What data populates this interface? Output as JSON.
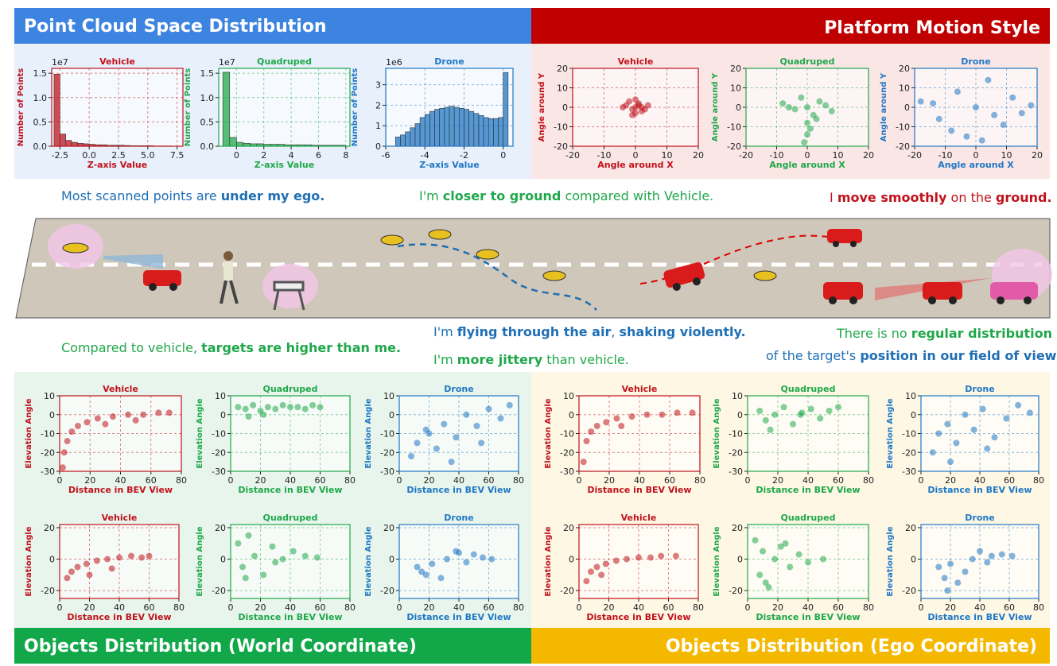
{
  "banners": {
    "top_left": "Point Cloud Space Distribution",
    "top_right": "Platform Motion Style",
    "bottom_left": "Objects Distribution (World Coordinate)",
    "bottom_right": "Objects Distribution (Ego Coordinate)"
  },
  "captions": [
    {
      "color": "#1f6fb5",
      "segments": [
        {
          "text": "Most scanned points are ",
          "bold": false
        },
        {
          "text": "under my ego.",
          "bold": true
        }
      ]
    },
    {
      "color": "#1fa84a",
      "segments": [
        {
          "text": "I'm ",
          "bold": false
        },
        {
          "text": "closer to ground",
          "bold": true
        },
        {
          "text": " compared with Vehicle.",
          "bold": false
        }
      ]
    },
    {
      "color": "#c0121b",
      "segments": [
        {
          "text": "I ",
          "bold": false
        },
        {
          "text": "move smoothly",
          "bold": true
        },
        {
          "text": " on the ",
          "bold": false
        },
        {
          "text": "ground.",
          "bold": true
        }
      ]
    },
    {
      "color": "#1fa84a",
      "segments": [
        {
          "text": "Compared to vehicle, ",
          "bold": false
        },
        {
          "text": "targets are higher than me.",
          "bold": true
        }
      ]
    },
    {
      "color": "#1f6fb5",
      "segments": [
        {
          "text": "I'm ",
          "bold": false
        },
        {
          "text": "flying through the air",
          "bold": true
        },
        {
          "text": ", ",
          "bold": false
        },
        {
          "text": "shaking violently.",
          "bold": true
        }
      ]
    },
    {
      "color": "#1fa84a",
      "segments": [
        {
          "text": "I'm ",
          "bold": false
        },
        {
          "text": "more jittery",
          "bold": true
        },
        {
          "text": " than vehicle.",
          "bold": false
        }
      ]
    },
    {
      "color": "#1fa84a",
      "segments": [
        {
          "text": "There is no ",
          "bold": false
        },
        {
          "text": "regular distribution",
          "bold": true
        }
      ]
    },
    {
      "color": "#1f6fb5",
      "segments": [
        {
          "text": "of the target's ",
          "bold": false
        },
        {
          "text": "position in our field of view.",
          "bold": true
        }
      ]
    }
  ],
  "chart_data": [
    {
      "type": "histogram",
      "title": "Vehicle",
      "xlabel": "Z-axis Value",
      "ylabel": "Number of Points",
      "scale_label": "1e7",
      "color": "#c0121b",
      "grid": true,
      "bins": [
        -3,
        -2.5,
        -2,
        -1.5,
        -1,
        -0.5,
        0,
        0.5,
        1,
        1.5,
        2,
        2.5,
        3,
        3.5,
        4,
        4.5,
        5,
        5.5,
        6,
        6.5,
        7
      ],
      "values": [
        1.48,
        0.25,
        0.12,
        0.08,
        0.06,
        0.05,
        0.04,
        0.03,
        0.03,
        0.02,
        0.02,
        0.02,
        0.015,
        0.01,
        0.01,
        0.01,
        0.01,
        0.005,
        0.005,
        0.005
      ],
      "xlim": [
        -3.2,
        8
      ],
      "ylim": [
        0,
        1.6
      ],
      "xticks": [
        -2.5,
        {
          "value": 0,
          "label": "0.0"
        },
        2.5,
        {
          "value": 5,
          "label": "5.0"
        },
        7.5
      ],
      "yticks": [
        {
          "value": 0,
          "label": "0.0"
        },
        0.5,
        {
          "value": 1,
          "label": "1.0"
        },
        1.5
      ]
    },
    {
      "type": "histogram",
      "title": "Quadruped",
      "xlabel": "Z-axis Value",
      "ylabel": "Number of Points",
      "scale_label": "1e7",
      "color": "#1fa84a",
      "grid": true,
      "bins": [
        -1,
        -0.5,
        0,
        0.5,
        1,
        1.5,
        2,
        2.5,
        3,
        3.5,
        4,
        4.5,
        5,
        5.5,
        6,
        6.5,
        7,
        7.5,
        8
      ],
      "values": [
        1.52,
        0.18,
        0.08,
        0.06,
        0.05,
        0.05,
        0.04,
        0.04,
        0.04,
        0.03,
        0.03,
        0.03,
        0.03,
        0.02,
        0.02,
        0.02,
        0.02,
        0.02
      ],
      "xlim": [
        -1.3,
        8.3
      ],
      "ylim": [
        0,
        1.6
      ],
      "xticks": [
        0,
        2,
        4,
        6,
        8
      ],
      "yticks": [
        {
          "value": 0,
          "label": "0.0"
        },
        0.5,
        {
          "value": 1,
          "label": "1.0"
        },
        1.5
      ]
    },
    {
      "type": "histogram",
      "title": "Drone",
      "xlabel": "Z-axis Value",
      "ylabel": "Number of Points",
      "scale_label": "1e6",
      "color": "#1f77c4",
      "grid": true,
      "bins": [
        -5.5,
        -5.25,
        -5,
        -4.75,
        -4.5,
        -4.25,
        -4,
        -3.75,
        -3.5,
        -3.25,
        -3,
        -2.75,
        -2.5,
        -2.25,
        -2,
        -1.75,
        -1.5,
        -1.25,
        -1,
        -0.75,
        -0.5,
        -0.25,
        0,
        0.25
      ],
      "values": [
        0.45,
        0.55,
        0.7,
        0.9,
        1.1,
        1.4,
        1.55,
        1.7,
        1.8,
        1.85,
        1.9,
        1.95,
        1.9,
        1.85,
        1.8,
        1.7,
        1.6,
        1.5,
        1.4,
        1.35,
        1.35,
        1.4,
        3.6
      ],
      "xlim": [
        -6,
        0.5
      ],
      "ylim": [
        0,
        3.8
      ],
      "xticks": [
        -6,
        -4,
        -2,
        0
      ],
      "yticks": [
        0,
        1,
        2,
        3
      ]
    },
    {
      "type": "scatter",
      "title": "Vehicle",
      "xlabel": "Angle around X",
      "ylabel": "Angle around Y",
      "color": "#c0121b",
      "grid": true,
      "x": [
        -3,
        -1,
        0,
        1,
        2,
        -2,
        0,
        1,
        -4,
        3,
        0,
        -1,
        2,
        4
      ],
      "y": [
        1,
        -1,
        0,
        2,
        -2,
        3,
        -3,
        1,
        0,
        -1,
        4,
        -4,
        0,
        1
      ],
      "xlim": [
        -20,
        20
      ],
      "ylim": [
        -20,
        20
      ],
      "xticks": [
        -20,
        -10,
        0,
        10,
        20
      ],
      "yticks": [
        -20,
        -10,
        0,
        10,
        20
      ]
    },
    {
      "type": "scatter",
      "title": "Quadruped",
      "xlabel": "Angle around X",
      "ylabel": "Angle around Y",
      "color": "#1fa84a",
      "grid": true,
      "x": [
        -8,
        -4,
        0,
        4,
        8,
        -2,
        2,
        0,
        0,
        -1,
        1,
        6,
        -6,
        3
      ],
      "y": [
        2,
        -1,
        0,
        3,
        -2,
        5,
        -4,
        -8,
        -14,
        -18,
        -11,
        1,
        0,
        -6
      ],
      "xlim": [
        -20,
        20
      ],
      "ylim": [
        -20,
        20
      ],
      "xticks": [
        -20,
        -10,
        0,
        10,
        20
      ],
      "yticks": [
        -20,
        -10,
        0,
        10,
        20
      ]
    },
    {
      "type": "scatter",
      "title": "Drone",
      "xlabel": "Angle around X",
      "ylabel": "Angle around Y",
      "color": "#1f77c4",
      "grid": true,
      "x": [
        -18,
        -12,
        -6,
        0,
        6,
        12,
        18,
        -8,
        4,
        -3,
        9,
        -14,
        2,
        15
      ],
      "y": [
        3,
        -6,
        8,
        0,
        -4,
        5,
        1,
        -12,
        14,
        -15,
        -9,
        2,
        -17,
        -3
      ],
      "xlim": [
        -20,
        20
      ],
      "ylim": [
        -20,
        20
      ],
      "xticks": [
        -20,
        -10,
        0,
        10,
        20
      ],
      "yticks": [
        -20,
        -10,
        0,
        10,
        20
      ]
    },
    {
      "type": "scatter",
      "title": "Vehicle",
      "xlabel": "Distance in BEV View",
      "ylabel": "Elevation Angle",
      "color": "#c0121b",
      "grid": true,
      "x": [
        2,
        3,
        5,
        8,
        12,
        18,
        25,
        35,
        45,
        55,
        65,
        72,
        30,
        50
      ],
      "y": [
        -28,
        -20,
        -14,
        -9,
        -6,
        -4,
        -2,
        -1,
        0,
        0,
        1,
        1,
        -5,
        -3
      ],
      "xlim": [
        0,
        80
      ],
      "ylim": [
        -30,
        10
      ],
      "xticks": [
        0,
        20,
        40,
        60,
        80
      ],
      "yticks": [
        -30,
        -20,
        -10,
        0,
        10
      ]
    },
    {
      "type": "scatter",
      "title": "Quadruped",
      "xlabel": "Distance in BEV View",
      "ylabel": "Elevation Angle",
      "color": "#1fa84a",
      "grid": true,
      "x": [
        5,
        10,
        15,
        20,
        25,
        30,
        35,
        40,
        45,
        50,
        55,
        60,
        12,
        22
      ],
      "y": [
        4,
        3,
        5,
        2,
        4,
        3,
        5,
        4,
        4,
        3,
        5,
        4,
        -1,
        0
      ],
      "xlim": [
        0,
        80
      ],
      "ylim": [
        -30,
        10
      ],
      "xticks": [
        0,
        20,
        40,
        60,
        80
      ],
      "yticks": [
        -30,
        -20,
        -10,
        0,
        10
      ]
    },
    {
      "type": "scatter",
      "title": "Drone",
      "xlabel": "Distance in BEV View",
      "ylabel": "Elevation Angle",
      "color": "#1f77c4",
      "grid": true,
      "x": [
        8,
        12,
        18,
        25,
        30,
        38,
        45,
        52,
        60,
        68,
        74,
        20,
        35,
        55
      ],
      "y": [
        -22,
        -15,
        -8,
        -18,
        -5,
        -12,
        0,
        -6,
        3,
        -2,
        5,
        -10,
        -25,
        -15
      ],
      "xlim": [
        0,
        80
      ],
      "ylim": [
        -30,
        10
      ],
      "xticks": [
        0,
        20,
        40,
        60,
        80
      ],
      "yticks": [
        -30,
        -20,
        -10,
        0,
        10
      ]
    },
    {
      "type": "scatter",
      "title": "Vehicle",
      "xlabel": "Distance in BEV View",
      "ylabel": "Elevation Angle",
      "color": "#c0121b",
      "grid": true,
      "x": [
        5,
        8,
        12,
        18,
        25,
        32,
        40,
        48,
        55,
        60,
        20,
        35
      ],
      "y": [
        -12,
        -8,
        -5,
        -3,
        -1,
        0,
        1,
        2,
        1,
        2,
        -10,
        -6
      ],
      "xlim": [
        0,
        80
      ],
      "ylim": [
        -25,
        22
      ],
      "xticks": [
        0,
        20,
        40,
        60,
        80
      ],
      "yticks": [
        -20,
        0,
        20
      ]
    },
    {
      "type": "scatter",
      "title": "Quadruped",
      "xlabel": "Distance in BEV View",
      "ylabel": "Elevation Angle",
      "color": "#1fa84a",
      "grid": true,
      "x": [
        5,
        8,
        12,
        16,
        22,
        28,
        35,
        42,
        50,
        58,
        10,
        30
      ],
      "y": [
        10,
        -5,
        15,
        2,
        -10,
        8,
        0,
        5,
        2,
        1,
        -12,
        -2
      ],
      "xlim": [
        0,
        80
      ],
      "ylim": [
        -25,
        22
      ],
      "xticks": [
        0,
        20,
        40,
        60,
        80
      ],
      "yticks": [
        -20,
        0,
        20
      ]
    },
    {
      "type": "scatter",
      "title": "Drone",
      "xlabel": "Distance in BEV View",
      "ylabel": "Elevation Angle",
      "color": "#1f77c4",
      "grid": true,
      "x": [
        12,
        18,
        22,
        28,
        32,
        38,
        45,
        50,
        56,
        62,
        15,
        40
      ],
      "y": [
        -5,
        -10,
        -3,
        -12,
        0,
        5,
        -2,
        3,
        1,
        0,
        -8,
        4
      ],
      "xlim": [
        0,
        80
      ],
      "ylim": [
        -25,
        22
      ],
      "xticks": [
        0,
        20,
        40,
        60,
        80
      ],
      "yticks": [
        -20,
        0,
        20
      ]
    },
    {
      "type": "scatter",
      "title": "Vehicle",
      "xlabel": "Distance in BEV View",
      "ylabel": "Elevation Angle",
      "color": "#c0121b",
      "grid": true,
      "x": [
        3,
        5,
        8,
        12,
        18,
        25,
        35,
        45,
        55,
        65,
        75,
        28
      ],
      "y": [
        -25,
        -14,
        -9,
        -6,
        -4,
        -2,
        -1,
        0,
        0,
        1,
        1,
        -6
      ],
      "xlim": [
        0,
        80
      ],
      "ylim": [
        -30,
        10
      ],
      "xticks": [
        0,
        20,
        40,
        60,
        80
      ],
      "yticks": [
        -30,
        -20,
        -10,
        0,
        10
      ]
    },
    {
      "type": "scatter",
      "title": "Quadruped",
      "xlabel": "Distance in BEV View",
      "ylabel": "Elevation Angle",
      "color": "#1fa84a",
      "grid": true,
      "x": [
        8,
        12,
        18,
        24,
        30,
        36,
        42,
        48,
        54,
        60,
        15,
        35
      ],
      "y": [
        2,
        -3,
        0,
        4,
        -5,
        1,
        3,
        -2,
        2,
        4,
        -8,
        0
      ],
      "xlim": [
        0,
        80
      ],
      "ylim": [
        -30,
        10
      ],
      "xticks": [
        0,
        20,
        40,
        60,
        80
      ],
      "yticks": [
        -30,
        -20,
        -10,
        0,
        10
      ]
    },
    {
      "type": "scatter",
      "title": "Drone",
      "xlabel": "Distance in BEV View",
      "ylabel": "Elevation Angle",
      "color": "#1f77c4",
      "grid": true,
      "x": [
        8,
        12,
        18,
        24,
        30,
        36,
        42,
        50,
        58,
        66,
        74,
        20,
        45
      ],
      "y": [
        -20,
        -10,
        -5,
        -15,
        0,
        -8,
        3,
        -12,
        -2,
        5,
        1,
        -25,
        -18
      ],
      "xlim": [
        0,
        80
      ],
      "ylim": [
        -30,
        10
      ],
      "xticks": [
        0,
        20,
        40,
        60,
        80
      ],
      "yticks": [
        -30,
        -20,
        -10,
        0,
        10
      ]
    },
    {
      "type": "scatter",
      "title": "Vehicle",
      "xlabel": "Distance in BEV View",
      "ylabel": "Elevation Angle",
      "color": "#c0121b",
      "grid": true,
      "x": [
        5,
        8,
        12,
        18,
        25,
        32,
        40,
        48,
        55,
        65,
        15
      ],
      "y": [
        -14,
        -8,
        -5,
        -3,
        -1,
        0,
        1,
        1,
        2,
        2,
        -10
      ],
      "xlim": [
        0,
        80
      ],
      "ylim": [
        -25,
        22
      ],
      "xticks": [
        0,
        20,
        40,
        60,
        80
      ],
      "yticks": [
        -20,
        0,
        20
      ]
    },
    {
      "type": "scatter",
      "title": "Quadruped",
      "xlabel": "Distance in BEV View",
      "ylabel": "Elevation Angle",
      "color": "#1fa84a",
      "grid": true,
      "x": [
        5,
        8,
        10,
        14,
        18,
        22,
        28,
        34,
        40,
        50,
        12,
        25
      ],
      "y": [
        12,
        -10,
        5,
        -18,
        0,
        8,
        -5,
        3,
        -2,
        0,
        -15,
        10
      ],
      "xlim": [
        0,
        80
      ],
      "ylim": [
        -25,
        22
      ],
      "xticks": [
        0,
        20,
        40,
        60,
        80
      ],
      "yticks": [
        -20,
        0,
        20
      ]
    },
    {
      "type": "scatter",
      "title": "Drone",
      "xlabel": "Distance in BEV View",
      "ylabel": "Elevation Angle",
      "color": "#1f77c4",
      "grid": true,
      "x": [
        12,
        16,
        20,
        25,
        30,
        35,
        40,
        48,
        55,
        62,
        18,
        45
      ],
      "y": [
        -5,
        -12,
        -3,
        -15,
        -8,
        0,
        5,
        2,
        3,
        2,
        -20,
        -2
      ],
      "xlim": [
        0,
        80
      ],
      "ylim": [
        -25,
        22
      ],
      "xticks": [
        0,
        20,
        40,
        60,
        80
      ],
      "yticks": [
        -20,
        0,
        20
      ]
    }
  ]
}
